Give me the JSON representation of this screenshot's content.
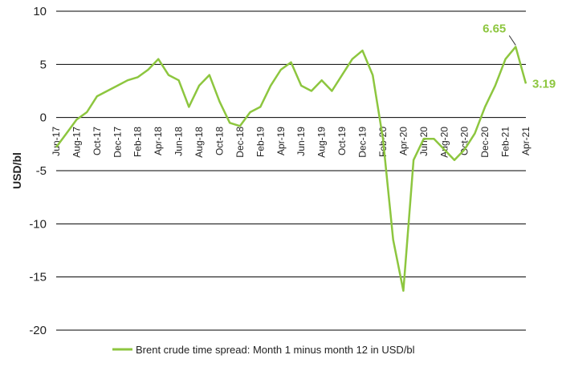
{
  "chart_data": {
    "type": "line",
    "title": "",
    "xlabel": "",
    "ylabel": "USD/bl",
    "ylim": [
      -20,
      10
    ],
    "yticks": [
      10,
      5,
      0,
      -5,
      -10,
      -15,
      -20
    ],
    "grid": "horizontal",
    "legend_position": "bottom",
    "line_color": "#8DC63F",
    "x_tick_labels": [
      "Jun-17",
      "Aug-17",
      "Oct-17",
      "Dec-17",
      "Feb-18",
      "Apr-18",
      "Jun-18",
      "Aug-18",
      "Oct-18",
      "Dec-18",
      "Feb-19",
      "Apr-19",
      "Jun-19",
      "Aug-19",
      "Oct-19",
      "Dec-19",
      "Feb-20",
      "Apr-20",
      "Jun-20",
      "Aug-20",
      "Oct-20",
      "Dec-20",
      "Feb-21",
      "Apr-21"
    ],
    "series": [
      {
        "name": "Brent crude time spread: Month 1 minus month 12 in USD/bl",
        "x": [
          "Jun-17",
          "Jul-17",
          "Aug-17",
          "Sep-17",
          "Oct-17",
          "Nov-17",
          "Dec-17",
          "Jan-18",
          "Feb-18",
          "Mar-18",
          "Apr-18",
          "May-18",
          "Jun-18",
          "Jul-18",
          "Aug-18",
          "Sep-18",
          "Oct-18",
          "Nov-18",
          "Dec-18",
          "Jan-19",
          "Feb-19",
          "Mar-19",
          "Apr-19",
          "May-19",
          "Jun-19",
          "Jul-19",
          "Aug-19",
          "Sep-19",
          "Oct-19",
          "Nov-19",
          "Dec-19",
          "Jan-20",
          "Feb-20",
          "Mar-20",
          "Apr-20",
          "May-20",
          "Jun-20",
          "Jul-20",
          "Aug-20",
          "Sep-20",
          "Oct-20",
          "Nov-20",
          "Dec-20",
          "Jan-21",
          "Feb-21",
          "Mar-21",
          "Apr-21"
        ],
        "values": [
          -2.8,
          -1.5,
          -0.2,
          0.5,
          2.0,
          2.5,
          3.0,
          3.5,
          3.8,
          4.5,
          5.5,
          4.0,
          3.5,
          1.0,
          3.0,
          4.0,
          1.5,
          -0.5,
          -0.8,
          0.5,
          1.0,
          3.0,
          4.5,
          5.2,
          3.0,
          2.5,
          3.5,
          2.5,
          4.0,
          5.5,
          6.3,
          4.0,
          -2.0,
          -11.5,
          -16.3,
          -4.0,
          -2.0,
          -2.0,
          -3.0,
          -4.0,
          -3.0,
          -1.5,
          1.0,
          3.0,
          5.5,
          6.65,
          3.19
        ]
      }
    ],
    "annotations": [
      {
        "label": "6.65",
        "x": "Mar-21",
        "value": 6.65
      },
      {
        "label": "3.19",
        "x": "Apr-21",
        "value": 3.19
      }
    ]
  }
}
